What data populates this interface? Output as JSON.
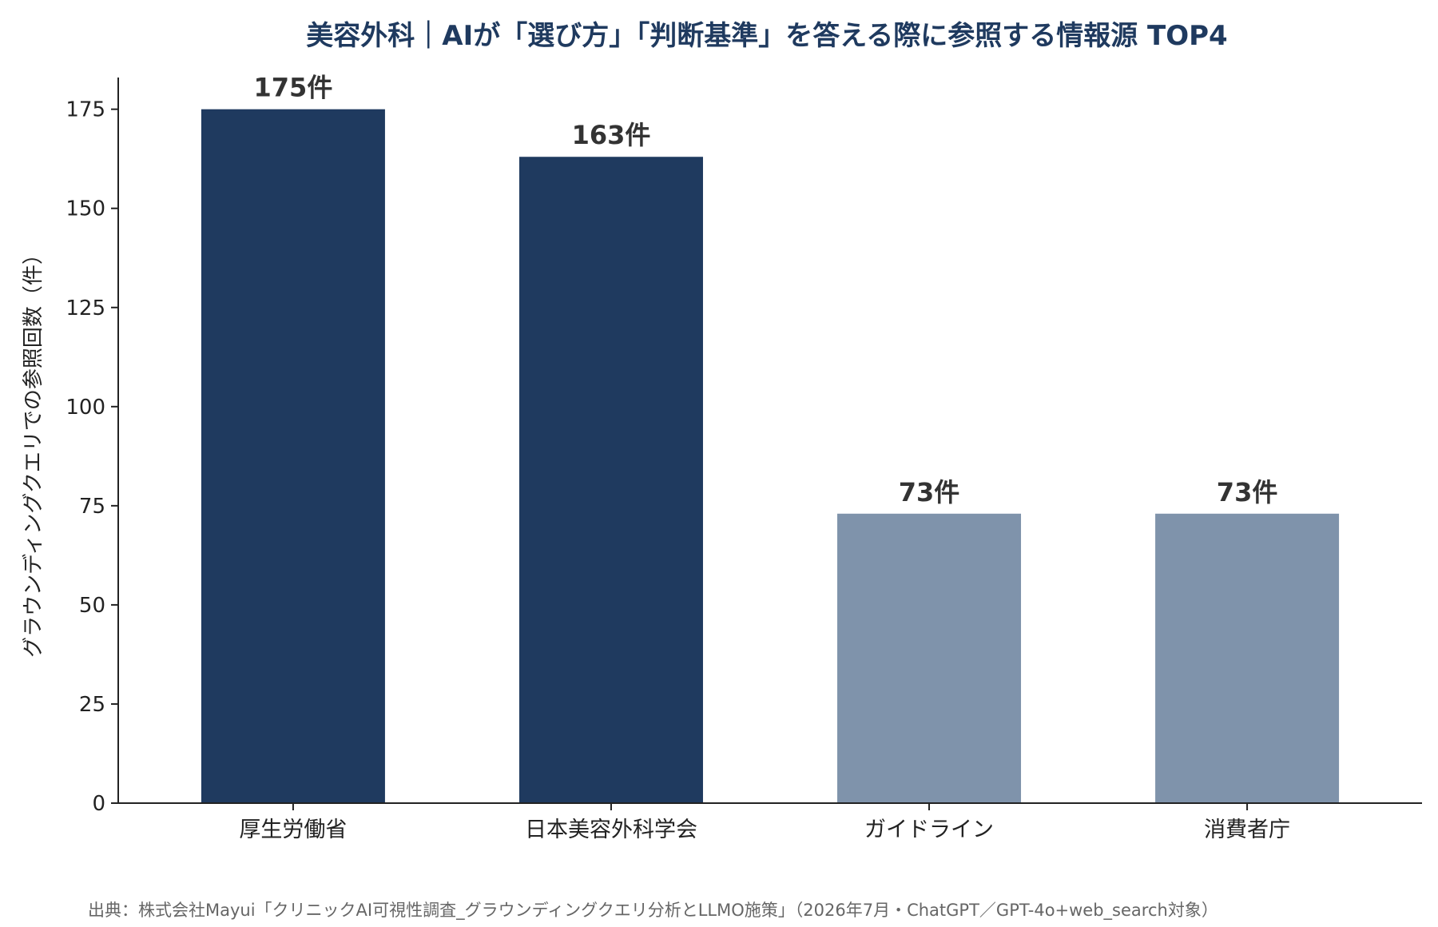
{
  "chart_data": {
    "type": "bar",
    "title": "美容外科｜AIが「選び方」「判断基準」を答える際に参照する情報源 TOP4",
    "xlabel": "",
    "ylabel": "グラウンディングクエリでの参照回数（件）",
    "categories": [
      "厚生労働省",
      "日本美容外科学会",
      "ガイドライン",
      "消費者庁"
    ],
    "values": [
      175,
      163,
      73,
      73
    ],
    "data_labels": [
      "175件",
      "163件",
      "73件",
      "73件"
    ],
    "bar_colors": [
      "#1f3a5f",
      "#1f3a5f",
      "#7f93ab",
      "#7f93ab"
    ],
    "ylim": [
      0,
      183
    ],
    "yticks": [
      0,
      25,
      50,
      75,
      100,
      125,
      150,
      175
    ],
    "grid": false,
    "legend": "none"
  },
  "source_note": "出典：株式会社Mayui「クリニックAI可視性調査_グラウンディングクエリ分析とLLMO施策」（2026年7月・ChatGPT／GPT-4o+web_search対象）"
}
